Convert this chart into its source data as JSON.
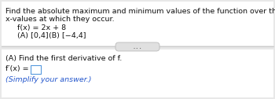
{
  "bg_color": "#e8e8e8",
  "top_bg": "#f5f5f5",
  "bot_bg": "#f0f0f0",
  "line1": "Find the absolute maximum and minimum values of the function over the indicated interval, and indicate the",
  "line2": "x-values at which they occur.",
  "line3": "f(x) = 2x + 8",
  "line4a": "(A) [0,4]",
  "line4b": "(B) [−4,4]",
  "ellipsis_text": "...",
  "section_a": "(A) Find the first derivative of f.",
  "derivative_label": "f′(x) =",
  "simplify": "(Simplify your answer.)",
  "simplify_color": "#2255cc",
  "box_edge_color": "#5599dd",
  "text_color": "#111111",
  "fs_main": 6.8,
  "fs_small": 6.5,
  "divider_color": "#cccccc",
  "ellipsis_bg": "#e0e0e0",
  "ellipsis_edge": "#bbbbbb"
}
